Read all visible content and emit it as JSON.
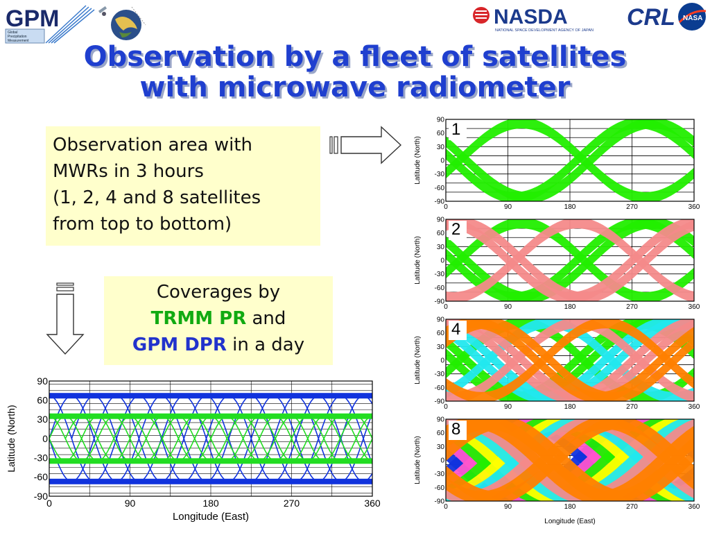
{
  "logos": {
    "gpm_text": "GPM",
    "gpm_sub": [
      "Global",
      "Precipitation",
      "Measurement"
    ],
    "nasda_text": "NASDA",
    "nasda_sub": "NATIONAL SPACE DEVELOPMENT AGENCY OF JAPAN",
    "crl_text": "CRL",
    "nasa_text": "NASA"
  },
  "title": {
    "line1": "Observation by a fleet of satellites",
    "line2": "with microwave radiometer"
  },
  "note1": {
    "lines": [
      "Observation area with",
      "MWRs in 3 hours",
      "(1, 2, 4 and 8 satellites",
      "from top to bottom)"
    ]
  },
  "note2": {
    "line1": "Coverages by",
    "trmm": "TRMM PR",
    "and": " and",
    "gpm": "GPM DPR",
    "tail": " in a day"
  },
  "colors": {
    "title": "#1f3fcf",
    "note_bg": "#ffffcc",
    "green": "#22ee00",
    "pink": "#f48a8a",
    "cyan": "#22e8ee",
    "orange": "#ff7f00",
    "blue": "#1133dd",
    "yellow": "#ffff00",
    "magenta": "#ff55cc"
  },
  "chart_data": [
    {
      "type": "heatmap",
      "label": "1",
      "xlabel": "",
      "ylabel": "Latitude (North)",
      "xlim": [
        0,
        360
      ],
      "ylim": [
        -90,
        90
      ],
      "xticks": [
        0,
        90,
        180,
        270,
        360
      ],
      "yticks": [
        90,
        60,
        30,
        0,
        -30,
        -60,
        -90
      ],
      "satellites": 1
    },
    {
      "type": "heatmap",
      "label": "2",
      "xlabel": "",
      "ylabel": "Latitude (North)",
      "xlim": [
        0,
        360
      ],
      "ylim": [
        -90,
        90
      ],
      "xticks": [
        0,
        90,
        180,
        270,
        360
      ],
      "yticks": [
        90,
        60,
        30,
        0,
        -30,
        -60,
        -90
      ],
      "satellites": 2
    },
    {
      "type": "heatmap",
      "label": "4",
      "xlabel": "",
      "ylabel": "Latitude (North)",
      "xlim": [
        0,
        360
      ],
      "ylim": [
        -90,
        90
      ],
      "xticks": [
        0,
        90,
        180,
        270,
        360
      ],
      "yticks": [
        90,
        60,
        30,
        0,
        -30,
        -60,
        -90
      ],
      "satellites": 4
    },
    {
      "type": "heatmap",
      "label": "8",
      "xlabel": "Longitude (East)",
      "ylabel": "Latitude (North)",
      "xlim": [
        0,
        360
      ],
      "ylim": [
        -90,
        90
      ],
      "xticks": [
        0,
        90,
        180,
        270,
        360
      ],
      "yticks": [
        90,
        60,
        30,
        0,
        -30,
        -60,
        -90
      ],
      "satellites": 8
    },
    {
      "type": "line",
      "xlabel": "Longitude (East)",
      "ylabel": "Latitude (North)",
      "xlim": [
        0,
        360
      ],
      "ylim": [
        -90,
        90
      ],
      "xticks": [
        0,
        90,
        180,
        270,
        360
      ],
      "yticks": [
        90,
        60,
        30,
        0,
        -30,
        -60,
        -90
      ],
      "series": [
        {
          "name": "GPM DPR",
          "lat_limit": 67,
          "color": "#1133dd"
        },
        {
          "name": "TRMM PR",
          "lat_limit": 35,
          "color": "#22dd22"
        }
      ]
    }
  ]
}
